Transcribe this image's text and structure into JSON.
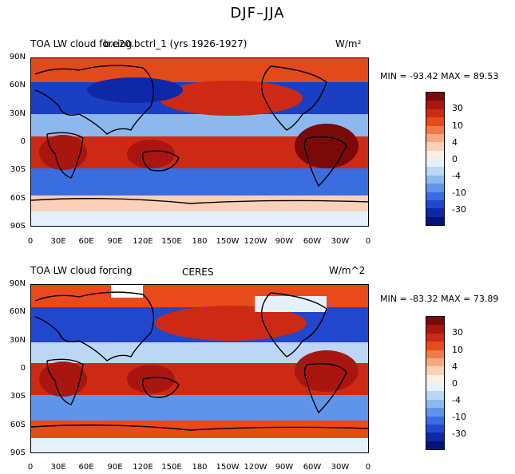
{
  "title": "DJF–JJA",
  "panels": [
    {
      "left_title": "TOA LW cloud forcing",
      "center_title": "b.e20.bctrl_1 (yrs 1926-1927)",
      "units": "W/m²",
      "stats": "MIN = -93.42  MAX =  89.53"
    },
    {
      "left_title": "TOA LW cloud forcing",
      "center_title": "CERES",
      "units": "W/m^2",
      "stats": "MIN = -83.32  MAX =  73.89"
    }
  ],
  "y_ticks": [
    "90N",
    "60N",
    "30N",
    "0",
    "30S",
    "60S",
    "90S"
  ],
  "x_ticks": [
    "0",
    "30E",
    "60E",
    "90E",
    "120E",
    "150E",
    "180",
    "150W",
    "120W",
    "90W",
    "60W",
    "30W",
    "0"
  ],
  "colorbar": {
    "labels": [
      "30",
      "10",
      "4",
      "0",
      "-4",
      "-10",
      "-30"
    ],
    "colors": [
      "#7a0a0a",
      "#a8160f",
      "#cc2a14",
      "#e84a1c",
      "#f27a4a",
      "#f7a880",
      "#fbd0b8",
      "#fdeee6",
      "#e6f0fa",
      "#bcd6f4",
      "#8db8ee",
      "#5f94e8",
      "#3a6ee0",
      "#2147cc",
      "#0f28a8",
      "#07137a"
    ]
  }
}
